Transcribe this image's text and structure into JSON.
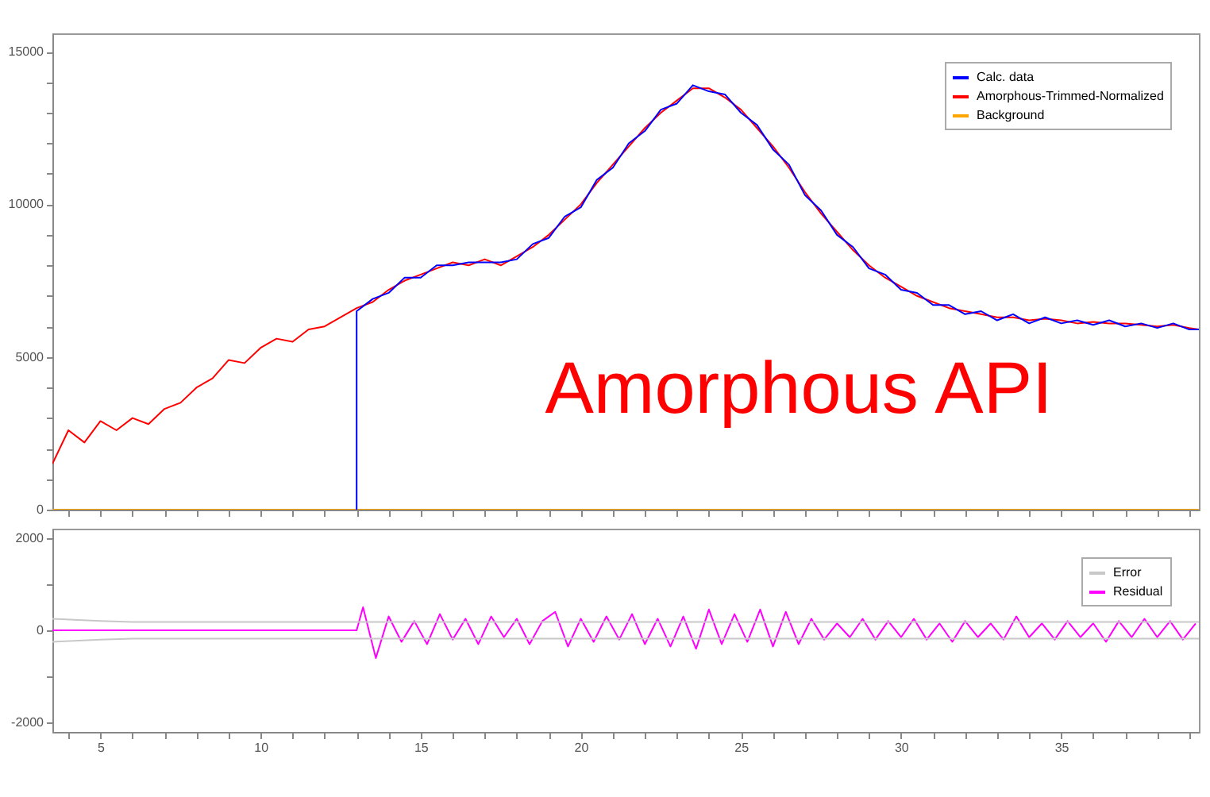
{
  "chart_data": [
    {
      "type": "line",
      "xlim": [
        3.5,
        39.3
      ],
      "ylim": [
        0,
        15600
      ],
      "tick_labels": "y",
      "grid": false,
      "legend": "top right",
      "marker": "none",
      "line_style": "solid",
      "xticks": [
        {
          "value": 4,
          "label": null
        },
        {
          "value": 5,
          "label": null
        },
        {
          "value": 6,
          "label": null
        },
        {
          "value": 7,
          "label": null
        },
        {
          "value": 8,
          "label": null
        },
        {
          "value": 9,
          "label": null
        },
        {
          "value": 10,
          "label": null
        },
        {
          "value": 11,
          "label": null
        },
        {
          "value": 12,
          "label": null
        },
        {
          "value": 13,
          "label": null
        },
        {
          "value": 14,
          "label": null
        },
        {
          "value": 15,
          "label": null
        },
        {
          "value": 16,
          "label": null
        },
        {
          "value": 17,
          "label": null
        },
        {
          "value": 18,
          "label": null
        },
        {
          "value": 19,
          "label": null
        },
        {
          "value": 20,
          "label": null
        },
        {
          "value": 21,
          "label": null
        },
        {
          "value": 22,
          "label": null
        },
        {
          "value": 23,
          "label": null
        },
        {
          "value": 24,
          "label": null
        },
        {
          "value": 25,
          "label": null
        },
        {
          "value": 26,
          "label": null
        },
        {
          "value": 27,
          "label": null
        },
        {
          "value": 28,
          "label": null
        },
        {
          "value": 29,
          "label": null
        },
        {
          "value": 30,
          "label": null
        },
        {
          "value": 31,
          "label": null
        },
        {
          "value": 32,
          "label": null
        },
        {
          "value": 33,
          "label": null
        },
        {
          "value": 34,
          "label": null
        },
        {
          "value": 35,
          "label": null
        },
        {
          "value": 36,
          "label": null
        },
        {
          "value": 37,
          "label": null
        },
        {
          "value": 38,
          "label": null
        },
        {
          "value": 39,
          "label": null
        }
      ],
      "yticks": [
        0,
        {
          "value": 1000,
          "label": null
        },
        {
          "value": 2000,
          "label": null
        },
        {
          "value": 3000,
          "label": null
        },
        {
          "value": 4000,
          "label": null
        },
        5000,
        {
          "value": 6000,
          "label": null
        },
        {
          "value": 7000,
          "label": null
        },
        {
          "value": 8000,
          "label": null
        },
        {
          "value": 9000,
          "label": null
        },
        10000,
        {
          "value": 11000,
          "label": null
        },
        {
          "value": 12000,
          "label": null
        },
        {
          "value": 13000,
          "label": null
        },
        {
          "value": 14000,
          "label": null
        },
        15000
      ],
      "annotations": [
        "Amorphous API"
      ],
      "series": [
        {
          "name": "Calc. data",
          "color": "#0000ff",
          "x": [
            13,
            13,
            13.5,
            14,
            14.5,
            15,
            15.5,
            16,
            16.5,
            17,
            17.5,
            18,
            18.5,
            19,
            19.5,
            20,
            20.5,
            21,
            21.5,
            22,
            22.5,
            23,
            23.5,
            24,
            24.5,
            25,
            25.5,
            26,
            26.5,
            27,
            27.5,
            28,
            28.5,
            29,
            29.5,
            30,
            30.5,
            31,
            31.5,
            32,
            32.5,
            33,
            33.5,
            34,
            34.5,
            35,
            35.5,
            36,
            36.5,
            37,
            37.5,
            38,
            38.5,
            39,
            39.3
          ],
          "values": [
            0,
            6500,
            6900,
            7100,
            7600,
            7600,
            8000,
            8000,
            8100,
            8100,
            8100,
            8200,
            8700,
            8900,
            9600,
            9900,
            10800,
            11200,
            12000,
            12400,
            13100,
            13300,
            13900,
            13700,
            13600,
            13000,
            12600,
            11800,
            11300,
            10300,
            9800,
            9000,
            8600,
            7900,
            7700,
            7200,
            7100,
            6700,
            6700,
            6400,
            6500,
            6200,
            6400,
            6100,
            6300,
            6100,
            6200,
            6050,
            6200,
            6000,
            6100,
            5950,
            6100,
            5900,
            5900
          ]
        },
        {
          "name": "Amorphous-Trimmed-Normalized",
          "color": "#ff0000",
          "x": [
            3.5,
            4,
            4.5,
            5,
            5.5,
            6,
            6.5,
            7,
            7.5,
            8,
            8.5,
            9,
            9.5,
            10,
            10.5,
            11,
            11.5,
            12,
            12.5,
            13,
            13.5,
            14,
            14.5,
            15,
            15.5,
            16,
            16.5,
            17,
            17.5,
            18,
            18.5,
            19,
            19.5,
            20,
            20.5,
            21,
            21.5,
            22,
            22.5,
            23,
            23.5,
            24,
            24.5,
            25,
            25.5,
            26,
            26.5,
            27,
            27.5,
            28,
            28.5,
            29,
            29.5,
            30,
            30.5,
            31,
            31.5,
            32,
            32.5,
            33,
            33.5,
            34,
            34.5,
            35,
            35.5,
            36,
            36.5,
            37,
            37.5,
            38,
            38.5,
            39,
            39.3
          ],
          "values": [
            1500,
            2600,
            2200,
            2900,
            2600,
            3000,
            2800,
            3300,
            3500,
            4000,
            4300,
            4900,
            4800,
            5300,
            5600,
            5500,
            5900,
            6000,
            6300,
            6600,
            6800,
            7200,
            7500,
            7700,
            7900,
            8100,
            8000,
            8200,
            8000,
            8300,
            8600,
            9000,
            9500,
            10000,
            10700,
            11300,
            11900,
            12500,
            13000,
            13400,
            13800,
            13800,
            13500,
            13100,
            12500,
            11900,
            11200,
            10400,
            9700,
            9100,
            8500,
            8000,
            7600,
            7300,
            7000,
            6800,
            6600,
            6500,
            6400,
            6300,
            6300,
            6200,
            6250,
            6200,
            6100,
            6150,
            6100,
            6100,
            6050,
            6000,
            6050,
            5950,
            5900
          ]
        },
        {
          "name": "Background",
          "color": "#ffa500",
          "x": [
            3.5,
            39.3
          ],
          "values": [
            0,
            0
          ]
        }
      ]
    },
    {
      "type": "line",
      "xlim": [
        3.5,
        39.3
      ],
      "ylim": [
        -2200,
        2200
      ],
      "grid": false,
      "legend": "top right",
      "marker": "none",
      "line_style": "solid",
      "xticks": [
        {
          "value": 4,
          "label": null
        },
        5,
        {
          "value": 6,
          "label": null
        },
        {
          "value": 7,
          "label": null
        },
        {
          "value": 8,
          "label": null
        },
        {
          "value": 9,
          "label": null
        },
        10,
        {
          "value": 11,
          "label": null
        },
        {
          "value": 12,
          "label": null
        },
        {
          "value": 13,
          "label": null
        },
        {
          "value": 14,
          "label": null
        },
        15,
        {
          "value": 16,
          "label": null
        },
        {
          "value": 17,
          "label": null
        },
        {
          "value": 18,
          "label": null
        },
        {
          "value": 19,
          "label": null
        },
        20,
        {
          "value": 21,
          "label": null
        },
        {
          "value": 22,
          "label": null
        },
        {
          "value": 23,
          "label": null
        },
        {
          "value": 24,
          "label": null
        },
        25,
        {
          "value": 26,
          "label": null
        },
        {
          "value": 27,
          "label": null
        },
        {
          "value": 28,
          "label": null
        },
        {
          "value": 29,
          "label": null
        },
        30,
        {
          "value": 31,
          "label": null
        },
        {
          "value": 32,
          "label": null
        },
        {
          "value": 33,
          "label": null
        },
        {
          "value": 34,
          "label": null
        },
        35,
        {
          "value": 36,
          "label": null
        },
        {
          "value": 37,
          "label": null
        },
        {
          "value": 38,
          "label": null
        },
        {
          "value": 39,
          "label": null
        }
      ],
      "yticks": [
        -2000,
        {
          "value": -1000,
          "label": null
        },
        0,
        {
          "value": 1000,
          "label": null
        },
        2000
      ],
      "series": [
        {
          "name": "Error",
          "color": "#c8c8c8",
          "x": [
            3.5,
            5,
            6,
            13,
            39.3
          ],
          "values": [
            250,
            200,
            180,
            180,
            180
          ]
        },
        {
          "color": "#c8c8c8",
          "x": [
            3.5,
            5,
            6,
            13,
            39.3
          ],
          "values": [
            -250,
            -200,
            -180,
            -180,
            -180
          ]
        },
        {
          "name": "Residual",
          "color": "#ff00ff",
          "x": [
            3.5,
            13,
            13.2,
            13.6,
            14.0,
            14.4,
            14.8,
            15.2,
            15.6,
            16.0,
            16.4,
            16.8,
            17.2,
            17.6,
            18.0,
            18.4,
            18.8,
            19.2,
            19.6,
            20.0,
            20.4,
            20.8,
            21.2,
            21.6,
            22.0,
            22.4,
            22.8,
            23.2,
            23.6,
            24.0,
            24.4,
            24.8,
            25.2,
            25.6,
            26.0,
            26.4,
            26.8,
            27.2,
            27.6,
            28.0,
            28.4,
            28.8,
            29.2,
            29.6,
            30.0,
            30.4,
            30.8,
            31.2,
            31.6,
            32.0,
            32.4,
            32.8,
            33.2,
            33.6,
            34.0,
            34.4,
            34.8,
            35.2,
            35.6,
            36.0,
            36.4,
            36.8,
            37.2,
            37.6,
            38.0,
            38.4,
            38.8,
            39.2
          ],
          "values": [
            0,
            0,
            500,
            -600,
            300,
            -250,
            200,
            -300,
            350,
            -200,
            250,
            -300,
            300,
            -150,
            250,
            -300,
            200,
            400,
            -350,
            250,
            -250,
            300,
            -200,
            350,
            -300,
            250,
            -350,
            300,
            -400,
            450,
            -300,
            350,
            -250,
            450,
            -350,
            400,
            -300,
            250,
            -200,
            150,
            -150,
            250,
            -200,
            200,
            -150,
            250,
            -200,
            150,
            -250,
            200,
            -150,
            150,
            -200,
            300,
            -150,
            150,
            -200,
            200,
            -150,
            150,
            -250,
            200,
            -150,
            250,
            -150,
            200,
            -200,
            150
          ]
        }
      ]
    }
  ]
}
